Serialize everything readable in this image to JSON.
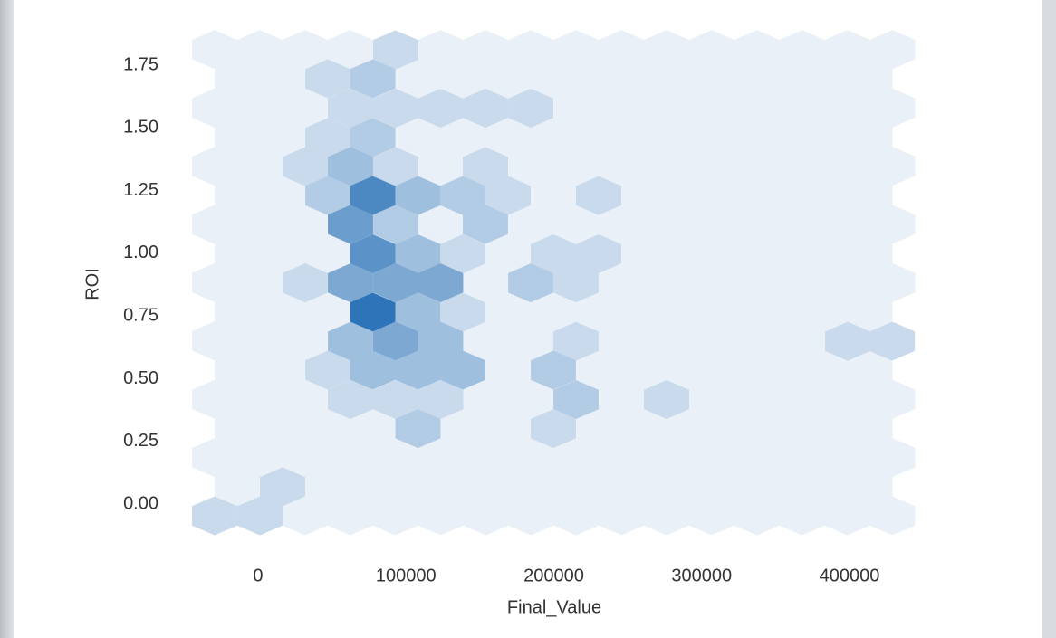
{
  "chart_data": {
    "type": "hexbin",
    "xlabel": "Final_Value",
    "ylabel": "ROI",
    "xlim": [
      -44700,
      444100
    ],
    "ylim": [
      -0.137,
      1.891
    ],
    "xticks": [
      0,
      100000,
      200000,
      300000,
      400000
    ],
    "yticks": [
      {
        "value": 0,
        "label": "0.00"
      },
      {
        "value": 0.25,
        "label": "0.25"
      },
      {
        "value": 0.5,
        "label": "0.50"
      },
      {
        "value": 0.75,
        "label": "0.75"
      },
      {
        "value": 1,
        "label": "1.00"
      },
      {
        "value": 1.25,
        "label": "1.25"
      },
      {
        "value": 1.5,
        "label": "1.50"
      },
      {
        "value": 1.75,
        "label": "1.75"
      }
    ],
    "colors": [
      "#e9f0f7",
      "#2e74b8"
    ],
    "x": [
      93100,
      77550,
      47170,
      62480,
      93100,
      123430,
      153750,
      184380,
      47170,
      77550,
      31850,
      62480,
      93100,
      153750,
      47170,
      77550,
      108120,
      138440,
      169070,
      230320,
      62480,
      93100,
      153750,
      77550,
      108120,
      138440,
      199700,
      230320,
      31850,
      62480,
      93100,
      123430,
      184380,
      215010,
      77550,
      108120,
      138440,
      62480,
      93100,
      123430,
      215010,
      398780,
      428790,
      47170,
      77550,
      108120,
      138440,
      199700,
      62480,
      93100,
      123430,
      215010,
      276270,
      108120,
      199700,
      16540,
      -29400,
      1230
    ],
    "y": [
      1.811,
      1.696,
      1.696,
      1.579,
      1.579,
      1.579,
      1.579,
      1.579,
      1.462,
      1.462,
      1.346,
      1.346,
      1.346,
      1.346,
      1.23,
      1.23,
      1.23,
      1.23,
      1.23,
      1.23,
      1.115,
      1.115,
      1.115,
      0.998,
      0.998,
      0.998,
      0.998,
      0.998,
      0.882,
      0.882,
      0.882,
      0.882,
      0.882,
      0.882,
      0.765,
      0.765,
      0.765,
      0.649,
      0.649,
      0.649,
      0.649,
      0.649,
      0.649,
      0.534,
      0.534,
      0.534,
      0.534,
      0.534,
      0.417,
      0.417,
      0.417,
      0.417,
      0.417,
      0.301,
      0.301,
      0.069,
      -0.047,
      -0.047
    ],
    "counts": [
      1,
      2,
      1,
      1,
      1,
      1,
      1,
      1,
      1,
      2,
      1,
      3,
      1,
      1,
      2,
      8,
      3,
      2,
      1,
      1,
      6,
      2,
      2,
      7,
      3,
      1,
      1,
      1,
      1,
      5,
      5,
      5,
      2,
      1,
      10,
      3,
      1,
      3,
      5,
      3,
      1,
      1,
      1,
      1,
      3,
      3,
      3,
      2,
      1,
      1,
      1,
      2,
      1,
      2,
      1,
      1,
      1,
      1
    ]
  }
}
